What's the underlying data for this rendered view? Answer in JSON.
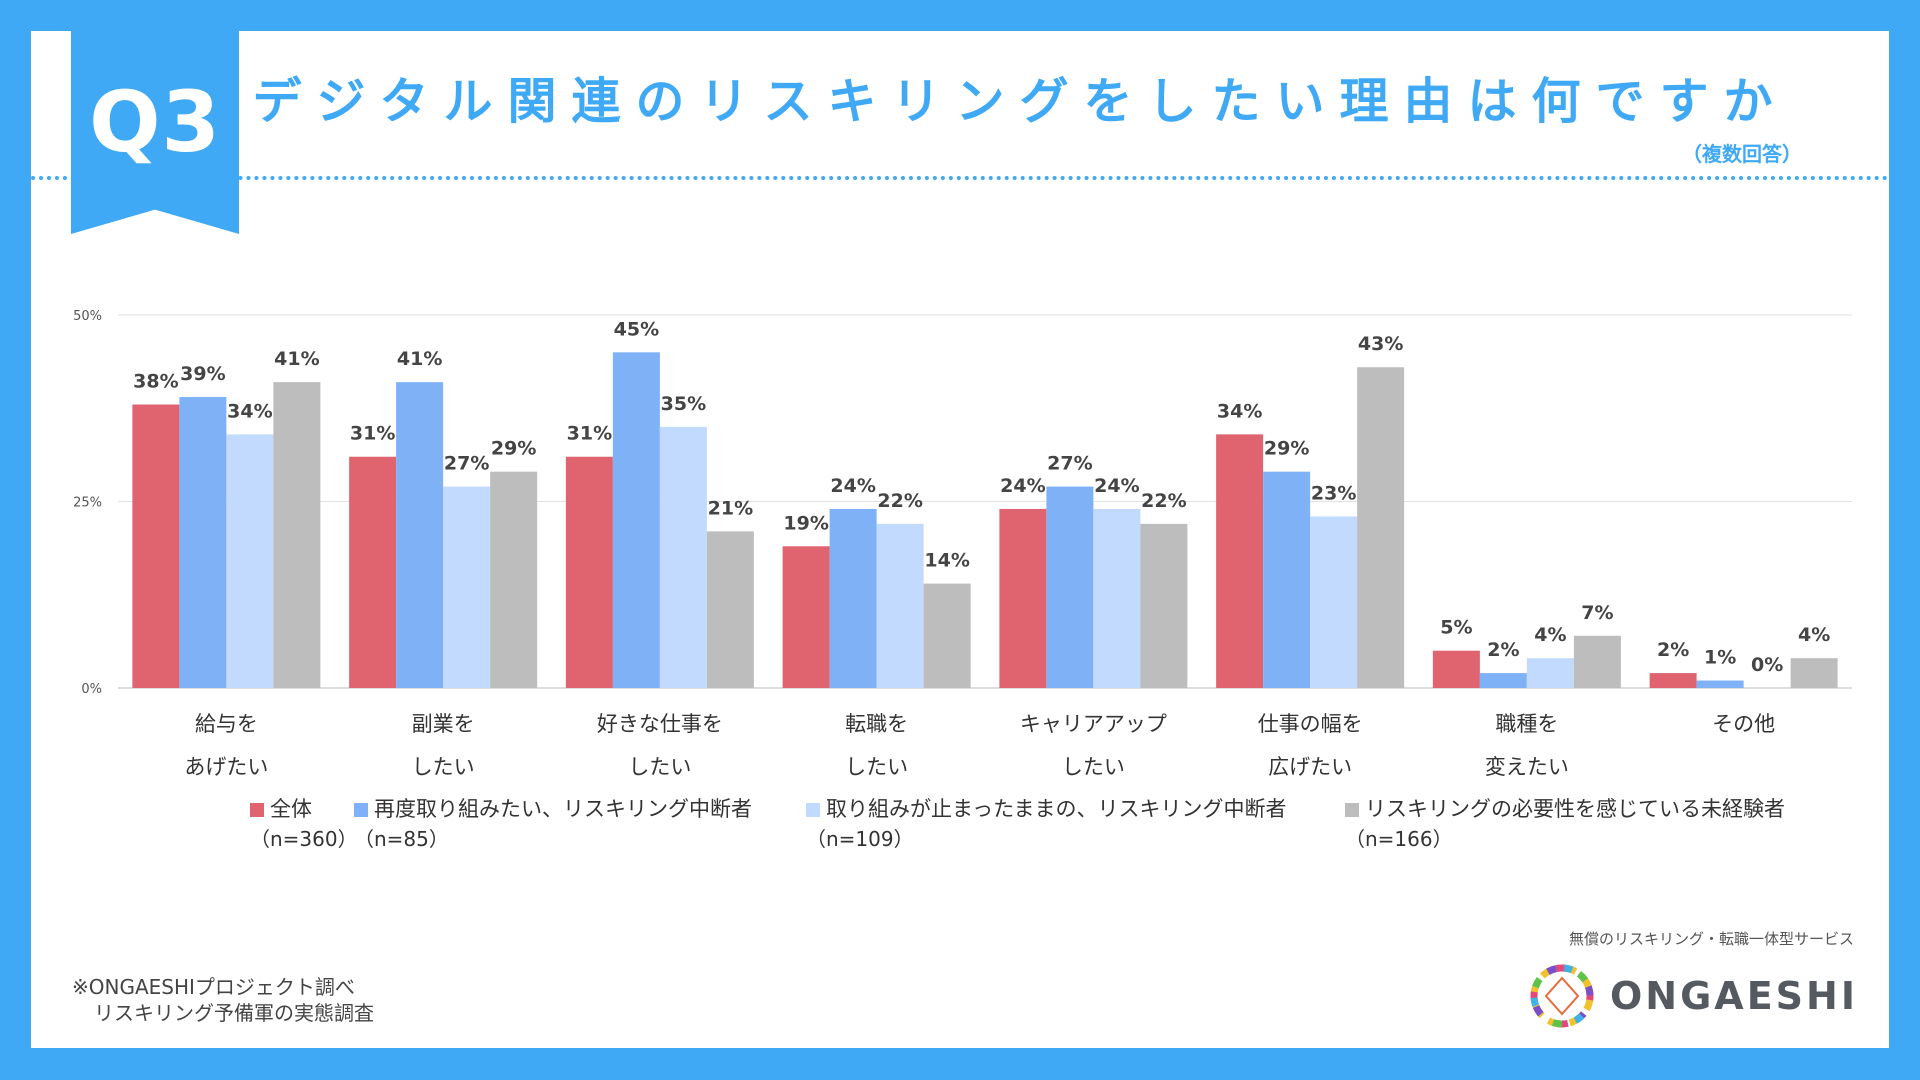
{
  "header": {
    "badge": "Q3",
    "title": "デジタル関連のリスキリングをしたい理由は何ですか",
    "note": "（複数回答）"
  },
  "colors": {
    "frame": "#3fa9f5",
    "series": [
      "#e06470",
      "#7fb1f7",
      "#c3daff",
      "#bdbdbd"
    ]
  },
  "chart_data": {
    "type": "bar",
    "categories": [
      [
        "給与を",
        "あげたい"
      ],
      [
        "副業を",
        "したい"
      ],
      [
        "好きな仕事を",
        "したい"
      ],
      [
        "転職を",
        "したい"
      ],
      [
        "キャリアアップ",
        "したい"
      ],
      [
        "仕事の幅を",
        "広げたい"
      ],
      [
        "職種を",
        "変えたい"
      ],
      [
        "その他",
        ""
      ]
    ],
    "series": [
      {
        "name": "全体",
        "n": "（n=360）",
        "values": [
          38,
          31,
          31,
          19,
          24,
          34,
          5,
          2
        ]
      },
      {
        "name": "再度取り組みたい、リスキリング中断者",
        "n": "（n=85）",
        "values": [
          39,
          41,
          45,
          24,
          27,
          29,
          2,
          1
        ]
      },
      {
        "name": "取り組みが止まったままの、リスキリング中断者",
        "n": "（n=109）",
        "values": [
          34,
          27,
          35,
          22,
          24,
          23,
          4,
          0
        ]
      },
      {
        "name": "リスキリングの必要性を感じている未経験者",
        "n": "（n=166）",
        "values": [
          41,
          29,
          21,
          14,
          22,
          43,
          7,
          4
        ]
      }
    ],
    "ylim": [
      0,
      50
    ],
    "yticks": [
      "0%",
      "25%",
      "50%"
    ],
    "ytick_values": [
      0,
      25,
      50
    ],
    "value_suffix": "%",
    "legend_position": "bottom",
    "grid": true
  },
  "footer": {
    "source_line1": "※ONGAESHIプロジェクト調べ",
    "source_line2": "リスキリング予備軍の実態調査",
    "brand_tagline": "無償のリスキリング・転職一体型サービス",
    "brand_name": "ONGAESHI"
  }
}
